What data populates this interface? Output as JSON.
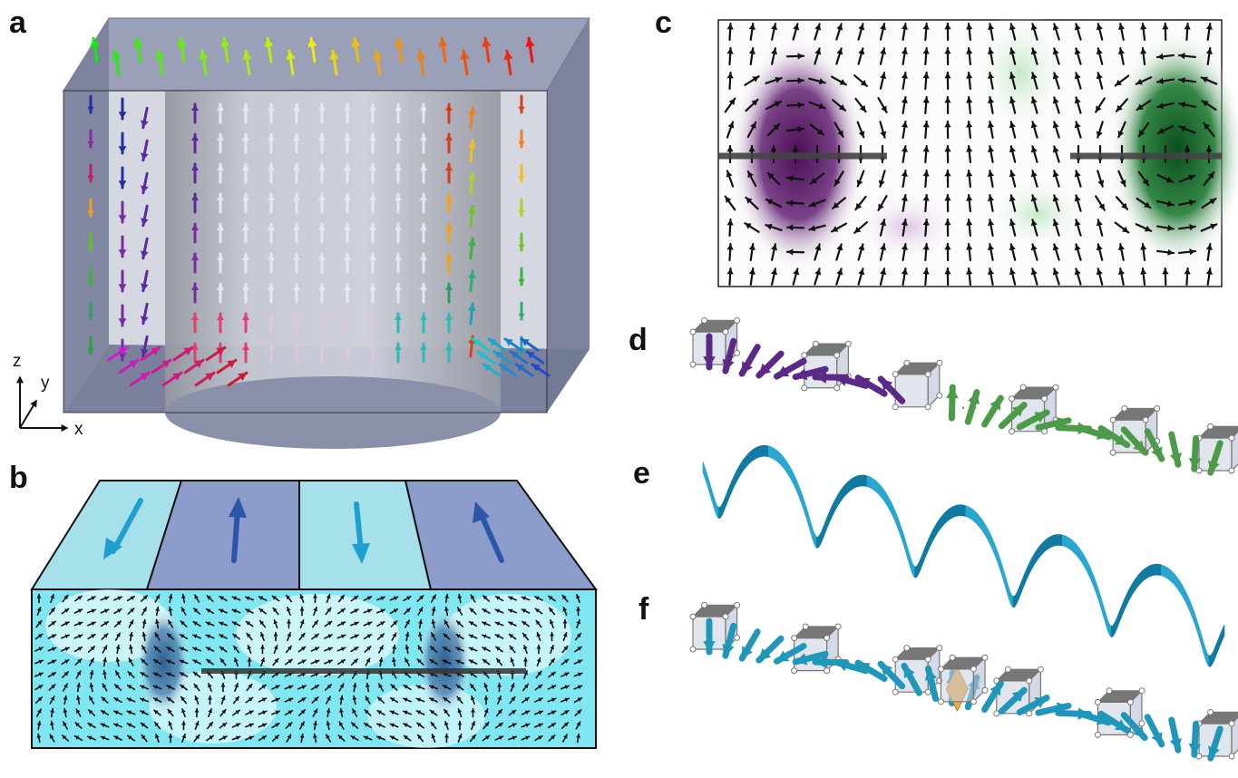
{
  "panels": {
    "a": "a",
    "b": "b",
    "c": "c",
    "d": "d",
    "e": "e",
    "f": "f"
  },
  "axes": {
    "z": "z",
    "y": "y",
    "x": "x"
  },
  "ellipsis": "···",
  "colors": {
    "box_face": "#8a90ac",
    "box_top": "#9aa0b8",
    "cylinder": "#d6d6d6",
    "stripe_light": "#a6e0ea",
    "stripe_dark": "#8c9dcc",
    "field_cyan": "#7fe6f2",
    "field_blob": "#2f5f8f",
    "purple_blob": "#4b0f55",
    "green_blob": "#0b4d1c",
    "helix": "#1a9bc4",
    "purple_arrow": "#5b2a86",
    "green_arrow": "#4e9a4b",
    "cyan_arrow": "#2196b8",
    "octahedron": "#f0a94a"
  }
}
